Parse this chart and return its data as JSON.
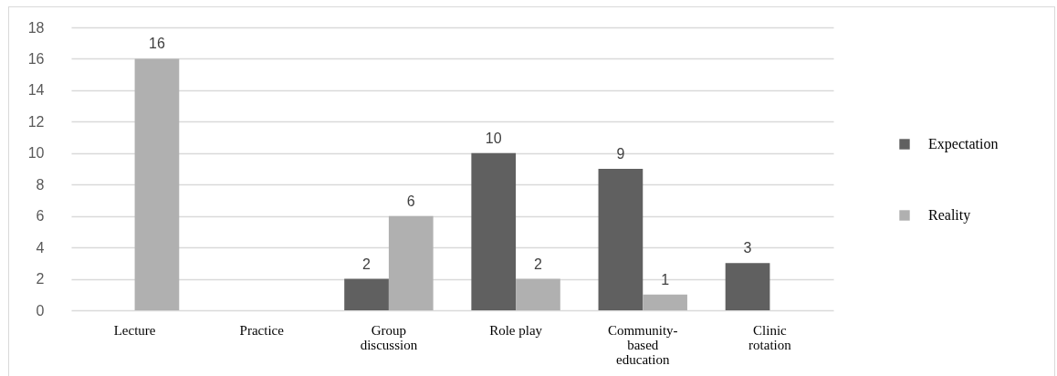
{
  "chart_data": {
    "type": "bar",
    "categories": [
      "Lecture",
      "Practice",
      "Group discussion",
      "Role play",
      "Community-based education",
      "Clinic rotation"
    ],
    "series": [
      {
        "name": "Expectation",
        "color": "#606060",
        "values": [
          0,
          0,
          2,
          10,
          9,
          3
        ],
        "value_labels": [
          null,
          null,
          "2",
          "10",
          "9",
          "3"
        ]
      },
      {
        "name": "Reality",
        "color": "#b0b0b0",
        "values": [
          16,
          0,
          6,
          2,
          1,
          0
        ],
        "value_labels": [
          "16",
          null,
          "6",
          "2",
          "1",
          null
        ]
      }
    ],
    "ylim": [
      0,
      18
    ],
    "yticks": [
      0,
      2,
      4,
      6,
      8,
      10,
      12,
      14,
      16,
      18
    ],
    "grid": "y",
    "legend": "right"
  }
}
